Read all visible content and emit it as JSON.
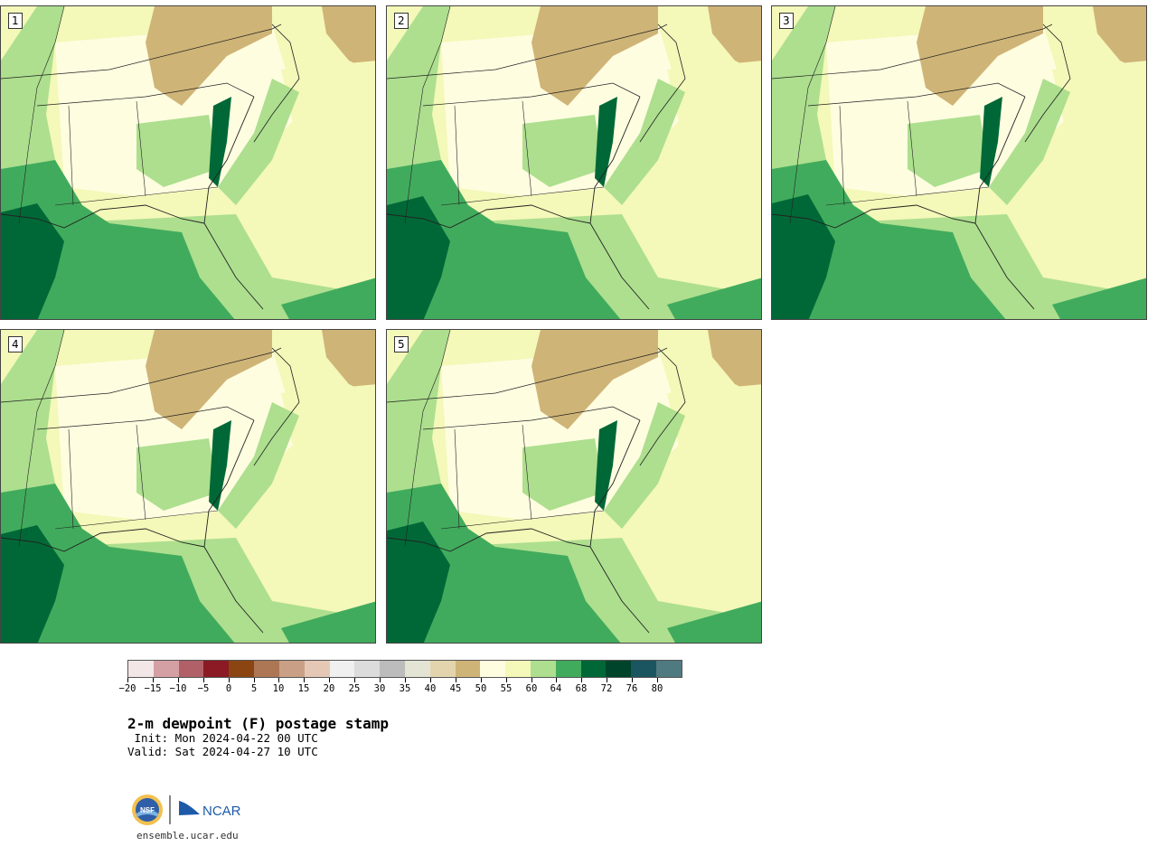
{
  "panels": [
    {
      "label": "1"
    },
    {
      "label": "2"
    },
    {
      "label": "3"
    },
    {
      "label": "4"
    },
    {
      "label": "5"
    }
  ],
  "colorbar": {
    "ticks": [
      "-20",
      "-15",
      "-10",
      "-5",
      "0",
      "5",
      "10",
      "15",
      "20",
      "25",
      "30",
      "35",
      "40",
      "45",
      "50",
      "55",
      "60",
      "64",
      "68",
      "72",
      "76",
      "80"
    ],
    "colors": [
      "#f3e6e6",
      "#d4a0a4",
      "#b06066",
      "#8b1a24",
      "#8b4513",
      "#ad7755",
      "#c9a086",
      "#e5c7b6",
      "#f0f0f0",
      "#dcdcdc",
      "#bcbcbc",
      "#e4e4d4",
      "#e3d4ae",
      "#cfb477",
      "#fffde0",
      "#f4f8b8",
      "#addf8e",
      "#41ab5d",
      "#006837",
      "#00442b",
      "#1b5560",
      "#4f7a80"
    ]
  },
  "title": "2-m dewpoint (F) postage stamp",
  "init": " Init: Mon 2024-04-22 00 UTC",
  "valid": "Valid: Sat 2024-04-27 10 UTC",
  "logo": {
    "nsf": "NSF",
    "ncar": "NCAR"
  },
  "site": "ensemble.ucar.edu"
}
